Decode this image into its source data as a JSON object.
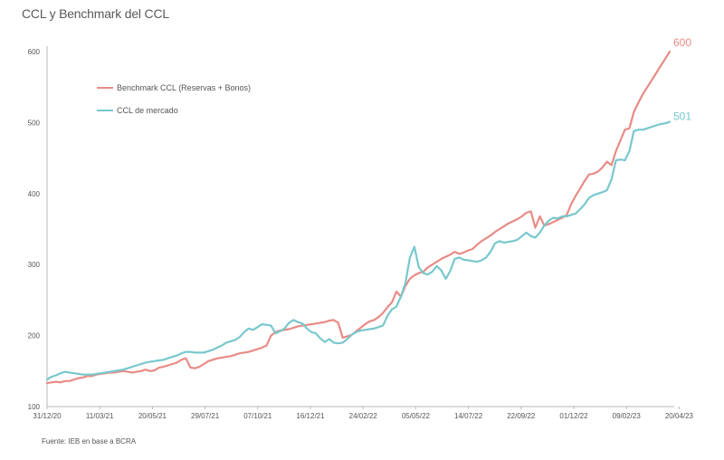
{
  "title": "CCL y Benchmark del CCL",
  "source": "Fuente: IEB en base a BCRA",
  "colors": {
    "benchmark": "#e88b86",
    "mercado": "#78c8cd",
    "axis": "#b9b9b9"
  },
  "chart_data": {
    "type": "line",
    "title": "CCL y Benchmark del CCL",
    "ylim": [
      100,
      600
    ],
    "yticks": [
      "100",
      "200",
      "300",
      "400",
      "500",
      "600"
    ],
    "xticks": [
      "31/12/20",
      "11/03/21",
      "20/05/21",
      "29/07/21",
      "07/10/21",
      "16/12/21",
      "24/02/22",
      "05/05/22",
      "14/07/22",
      "22/09/22",
      "01/12/22",
      "09/02/23",
      "20/04/23"
    ],
    "legend_position": "top-left",
    "series": [
      {
        "name": "Benchmark CCL (Reservas + Bonos)",
        "end_label": "600",
        "values": [
          133,
          134,
          135,
          134,
          136,
          136,
          138,
          140,
          141,
          143,
          143,
          145,
          146,
          147,
          148,
          148,
          149,
          150,
          149,
          148,
          149,
          150,
          152,
          150,
          151,
          155,
          156,
          158,
          160,
          162,
          166,
          168,
          155,
          154,
          156,
          160,
          164,
          166,
          168,
          169,
          170,
          171,
          173,
          175,
          176,
          177,
          179,
          181,
          183,
          186,
          200,
          205,
          207,
          208,
          209,
          211,
          213,
          214,
          215,
          216,
          217,
          218,
          219,
          221,
          222,
          218,
          197,
          199,
          201,
          206,
          211,
          216,
          220,
          222,
          226,
          232,
          240,
          247,
          262,
          255,
          270,
          280,
          285,
          288,
          290,
          296,
          300,
          304,
          308,
          311,
          314,
          318,
          315,
          317,
          320,
          322,
          328,
          333,
          337,
          341,
          346,
          350,
          354,
          358,
          361,
          364,
          368,
          373,
          375,
          352,
          368,
          355,
          357,
          360,
          363,
          366,
          370,
          385,
          397,
          407,
          418,
          427,
          428,
          431,
          437,
          445,
          440,
          460,
          475,
          490,
          492,
          515,
          528,
          540,
          550,
          560,
          570,
          580,
          590,
          600
        ]
      },
      {
        "name": "CCL de mercado",
        "end_label": "501",
        "values": [
          138,
          142,
          144,
          147,
          149,
          148,
          147,
          146,
          145,
          145,
          145,
          146,
          147,
          148,
          149,
          150,
          151,
          152,
          154,
          156,
          158,
          160,
          162,
          163,
          164,
          165,
          166,
          168,
          170,
          172,
          175,
          177,
          177,
          176,
          176,
          176,
          178,
          180,
          183,
          186,
          190,
          192,
          194,
          198,
          205,
          210,
          208,
          212,
          216,
          215,
          214,
          203,
          206,
          210,
          218,
          222,
          219,
          217,
          210,
          205,
          203,
          196,
          191,
          195,
          190,
          189,
          190,
          195,
          201,
          205,
          207,
          208,
          209,
          210,
          212,
          214,
          228,
          237,
          241,
          255,
          274,
          310,
          325,
          296,
          288,
          286,
          290,
          298,
          292,
          280,
          291,
          308,
          310,
          307,
          306,
          305,
          304,
          306,
          310,
          318,
          330,
          333,
          331,
          332,
          333,
          335,
          340,
          345,
          340,
          338,
          345,
          355,
          362,
          366,
          365,
          368,
          368,
          370,
          372,
          378,
          385,
          394,
          398,
          400,
          402,
          405,
          420,
          447,
          448,
          447,
          460,
          488,
          490,
          490,
          492,
          494,
          496,
          498,
          499,
          501
        ]
      }
    ]
  }
}
